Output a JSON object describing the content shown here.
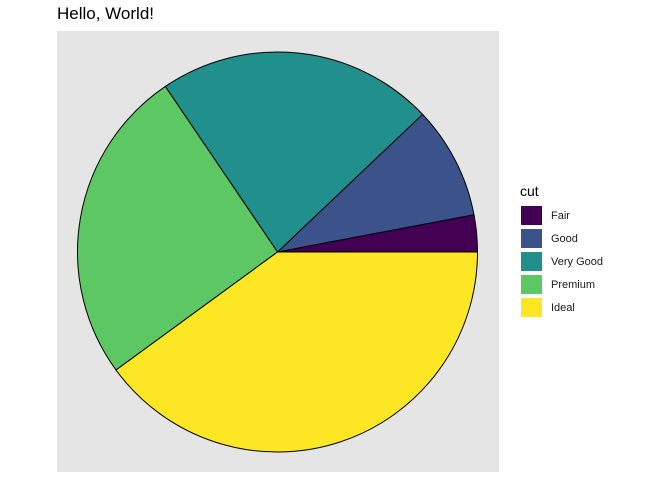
{
  "title": "Hello, World!",
  "chart_data": {
    "type": "pie",
    "title": "Hello, World!",
    "legend_title": "cut",
    "legend_position": "right",
    "categories": [
      "Fair",
      "Good",
      "Very Good",
      "Premium",
      "Ideal"
    ],
    "values": [
      1610,
      4906,
      12082,
      13791,
      21551
    ],
    "colors": [
      "#440154",
      "#3B528B",
      "#21908C",
      "#5DC863",
      "#FDE725"
    ],
    "panel_background": "#E5E5E5"
  }
}
